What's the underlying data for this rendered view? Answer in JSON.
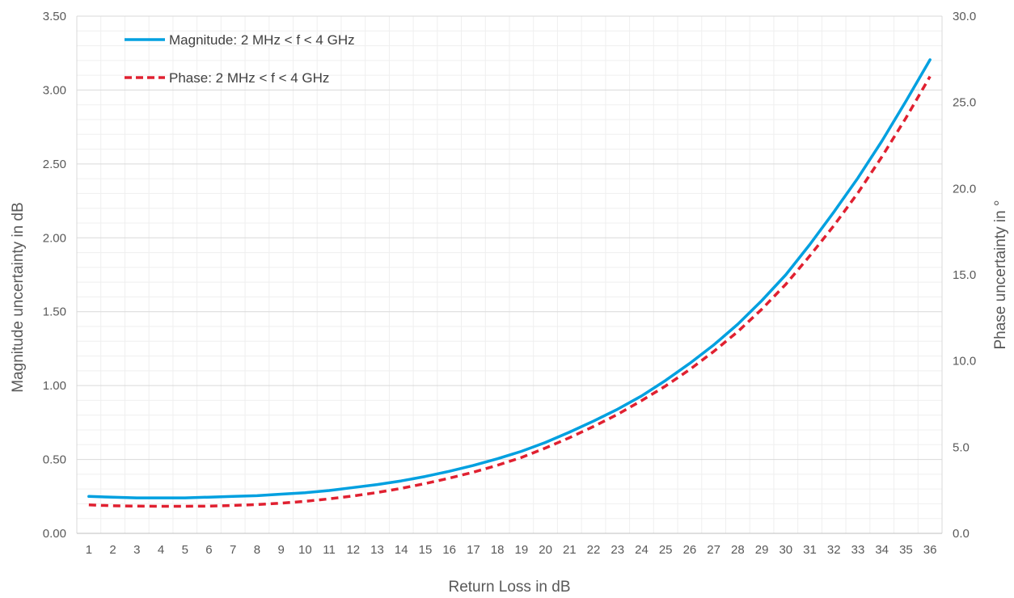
{
  "chart_data": {
    "type": "line",
    "x": [
      1,
      2,
      3,
      4,
      5,
      6,
      7,
      8,
      9,
      10,
      11,
      12,
      13,
      14,
      15,
      16,
      17,
      18,
      19,
      20,
      21,
      22,
      23,
      24,
      25,
      26,
      27,
      28,
      29,
      30,
      31,
      32,
      33,
      34,
      35,
      36
    ],
    "xlabel": "Return Loss in dB",
    "ylabel": "Magnitude uncertainty in dB",
    "y2label": "Phase uncertainty in °",
    "ylim": [
      0,
      3.5
    ],
    "y2lim": [
      0,
      30
    ],
    "yticks": [
      "0.00",
      "0.50",
      "1.00",
      "1.50",
      "2.00",
      "2.50",
      "3.00",
      "3.50"
    ],
    "y2ticks": [
      "0.0",
      "5.0",
      "10.0",
      "15.0",
      "20.0",
      "25.0",
      "30.0"
    ],
    "grid": true,
    "legend_position": "top-left",
    "series": [
      {
        "name": "Magnitude: 2 MHz < f < 4 GHz",
        "axis": "left",
        "color": "#00a0e0",
        "style": "solid",
        "values": [
          0.25,
          0.245,
          0.24,
          0.24,
          0.24,
          0.245,
          0.25,
          0.255,
          0.265,
          0.275,
          0.29,
          0.31,
          0.33,
          0.355,
          0.385,
          0.42,
          0.46,
          0.505,
          0.555,
          0.615,
          0.685,
          0.76,
          0.84,
          0.93,
          1.035,
          1.15,
          1.275,
          1.415,
          1.575,
          1.75,
          1.955,
          2.175,
          2.405,
          2.655,
          2.925,
          3.205
        ]
      },
      {
        "name": "Phase: 2 MHz < f < 4 GHz",
        "axis": "right",
        "color": "#e02030",
        "style": "dashed",
        "values": [
          1.65,
          1.6,
          1.58,
          1.57,
          1.57,
          1.58,
          1.62,
          1.67,
          1.75,
          1.86,
          2.0,
          2.17,
          2.37,
          2.61,
          2.89,
          3.2,
          3.55,
          3.95,
          4.4,
          4.95,
          5.55,
          6.2,
          6.9,
          7.7,
          8.55,
          9.5,
          10.55,
          11.7,
          13.0,
          14.45,
          16.1,
          17.85,
          19.75,
          21.85,
          24.1,
          26.5
        ]
      }
    ]
  }
}
